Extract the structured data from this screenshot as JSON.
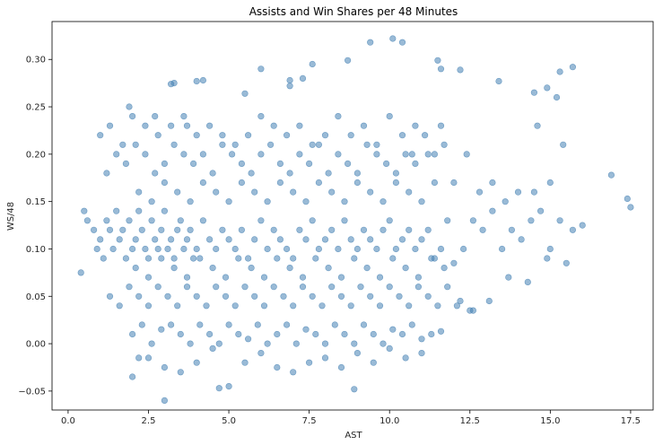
{
  "chart_data": {
    "type": "scatter",
    "title": "Assists and Win Shares per 48 Minutes",
    "xlabel": "AST",
    "ylabel": "WS/48",
    "xlim": [
      -0.5,
      18.2
    ],
    "ylim": [
      -0.07,
      0.34
    ],
    "xticks": [
      0.0,
      2.5,
      5.0,
      7.5,
      10.0,
      12.5,
      15.0,
      17.5
    ],
    "xtick_labels": [
      "0.0",
      "2.5",
      "5.0",
      "7.5",
      "10.0",
      "12.5",
      "15.0",
      "17.5"
    ],
    "yticks": [
      -0.05,
      0.0,
      0.05,
      0.1,
      0.15,
      0.2,
      0.25,
      0.3
    ],
    "ytick_labels": [
      "−0.05",
      "0.00",
      "0.05",
      "0.10",
      "0.15",
      "0.20",
      "0.25",
      "0.30"
    ],
    "grid": false,
    "legend": "none",
    "marker_color": "#4682b4",
    "marker_alpha": 0.55,
    "series": [
      {
        "x": [
          0.4,
          0.5,
          0.6,
          0.8,
          0.9,
          1.0,
          1.1,
          1.2,
          1.3,
          1.4,
          1.5,
          1.6,
          1.7,
          1.8,
          1.9,
          2.0,
          2.1,
          2.2,
          2.3,
          2.4,
          2.5,
          2.6,
          2.7,
          2.8,
          2.9,
          3.0,
          3.1,
          3.2,
          3.3,
          3.4,
          3.5,
          3.6,
          3.7,
          3.8,
          3.9,
          4.0,
          4.2,
          4.4,
          4.6,
          4.8,
          5.0,
          5.2,
          5.4,
          5.6,
          5.8,
          6.0,
          6.2,
          6.4,
          6.6,
          6.8,
          7.0,
          7.2,
          7.4,
          7.6,
          7.8,
          8.0,
          8.2,
          8.4,
          8.6,
          8.8,
          9.0,
          9.2,
          9.4,
          9.6,
          9.8,
          10.0,
          10.2,
          10.4,
          10.6,
          10.8,
          11.0,
          11.2,
          11.4,
          11.6,
          11.8,
          12.0,
          12.3,
          12.6,
          12.9,
          13.2,
          13.5,
          13.8,
          14.1,
          14.4,
          14.7,
          15.0,
          15.3,
          15.7,
          16.0,
          16.9,
          17.4,
          17.5,
          1.2,
          1.5,
          1.8,
          2.1,
          2.4,
          2.7,
          3.0,
          3.3,
          3.6,
          3.9,
          4.2,
          4.5,
          4.8,
          5.1,
          5.4,
          5.7,
          6.0,
          6.3,
          6.6,
          6.9,
          7.2,
          7.5,
          7.8,
          8.1,
          8.4,
          8.7,
          9.0,
          9.3,
          9.6,
          9.9,
          10.2,
          10.5,
          10.8,
          11.1,
          11.4,
          11.7,
          12.0,
          12.4,
          12.8,
          13.2,
          13.6,
          14.0,
          14.5,
          15.0,
          15.4,
          1.3,
          1.6,
          1.9,
          2.2,
          2.5,
          2.8,
          3.1,
          3.4,
          3.7,
          4.0,
          4.3,
          4.6,
          4.9,
          5.2,
          5.5,
          5.8,
          6.1,
          6.4,
          6.7,
          7.0,
          7.3,
          7.6,
          7.9,
          8.2,
          8.5,
          8.8,
          9.1,
          9.4,
          9.7,
          10.0,
          10.3,
          10.6,
          10.9,
          11.2,
          11.5,
          11.8,
          12.1,
          12.6,
          13.1,
          13.7,
          14.3,
          14.9,
          15.5,
          2.0,
          2.3,
          2.6,
          2.9,
          3.2,
          3.5,
          3.8,
          4.1,
          4.4,
          4.7,
          5.0,
          5.3,
          5.6,
          5.9,
          6.2,
          6.5,
          6.8,
          7.1,
          7.4,
          7.7,
          8.0,
          8.3,
          8.6,
          8.9,
          9.2,
          9.5,
          9.8,
          10.1,
          10.4,
          10.7,
          11.0,
          11.3,
          11.6,
          12.2,
          12.5,
          2.2,
          2.6,
          3.0,
          3.4,
          3.8,
          4.2,
          4.6,
          5.0,
          5.4,
          5.8,
          6.2,
          6.6,
          7.0,
          7.4,
          7.8,
          8.2,
          8.6,
          9.0,
          9.4,
          9.8,
          10.2,
          10.6,
          11.0,
          11.4,
          2.1,
          2.5,
          2.9,
          3.3,
          3.7,
          4.1,
          4.5,
          4.9,
          5.3,
          5.7,
          6.1,
          6.5,
          6.9,
          7.3,
          7.7,
          8.1,
          8.5,
          8.9,
          9.3,
          9.7,
          10.1,
          10.5,
          10.9,
          11.3,
          11.7,
          1.0,
          1.3,
          1.7,
          2.0,
          2.4,
          2.8,
          3.2,
          3.6,
          4.0,
          4.4,
          4.8,
          5.2,
          5.6,
          6.0,
          6.4,
          6.8,
          7.2,
          7.6,
          8.0,
          8.4,
          8.8,
          9.2,
          9.6,
          10.0,
          10.4,
          10.8,
          11.2,
          11.6,
          2.0,
          2.5,
          3.0,
          3.5,
          4.0,
          4.5,
          5.0,
          5.5,
          6.0,
          6.5,
          7.0,
          7.5,
          8.0,
          8.5,
          9.0,
          9.5,
          10.0,
          10.5,
          11.0,
          1.9,
          2.7,
          3.3,
          3.7,
          4.2,
          8.9,
          2.2,
          3.0,
          4.7,
          6.0,
          7.3
        ],
        "y": [
          0.075,
          0.14,
          0.13,
          0.12,
          0.1,
          0.11,
          0.09,
          0.13,
          0.12,
          0.1,
          0.14,
          0.11,
          0.12,
          0.09,
          0.13,
          0.1,
          0.11,
          0.14,
          0.12,
          0.1,
          0.09,
          0.13,
          0.11,
          0.1,
          0.12,
          0.14,
          0.1,
          0.11,
          0.09,
          0.12,
          0.13,
          0.1,
          0.11,
          0.12,
          0.09,
          0.1,
          0.13,
          0.11,
          0.1,
          0.12,
          0.11,
          0.1,
          0.12,
          0.09,
          0.11,
          0.13,
          0.1,
          0.12,
          0.11,
          0.1,
          0.09,
          0.12,
          0.11,
          0.13,
          0.1,
          0.11,
          0.12,
          0.1,
          0.13,
          0.11,
          0.1,
          0.12,
          0.11,
          0.1,
          0.12,
          0.13,
          0.1,
          0.11,
          0.12,
          0.1,
          0.11,
          0.12,
          0.09,
          0.1,
          0.13,
          0.085,
          0.1,
          0.13,
          0.12,
          0.14,
          0.1,
          0.12,
          0.11,
          0.13,
          0.14,
          0.1,
          0.13,
          0.12,
          0.125,
          0.178,
          0.153,
          0.144,
          0.18,
          0.2,
          0.19,
          0.21,
          0.2,
          0.18,
          0.19,
          0.21,
          0.2,
          0.19,
          0.2,
          0.18,
          0.21,
          0.2,
          0.19,
          0.18,
          0.2,
          0.21,
          0.19,
          0.18,
          0.2,
          0.19,
          0.21,
          0.18,
          0.2,
          0.19,
          0.18,
          0.21,
          0.2,
          0.19,
          0.18,
          0.2,
          0.19,
          0.22,
          0.2,
          0.21,
          0.17,
          0.2,
          0.16,
          0.17,
          0.15,
          0.16,
          0.16,
          0.17,
          0.21,
          0.05,
          0.04,
          0.06,
          0.05,
          0.04,
          0.06,
          0.05,
          0.04,
          0.06,
          0.05,
          0.04,
          0.06,
          0.05,
          0.04,
          0.06,
          0.05,
          0.04,
          0.06,
          0.05,
          0.04,
          0.06,
          0.05,
          0.04,
          0.06,
          0.05,
          0.04,
          0.06,
          0.05,
          0.04,
          0.06,
          0.05,
          0.04,
          0.06,
          0.05,
          0.04,
          0.06,
          0.04,
          0.035,
          0.045,
          0.07,
          0.065,
          0.09,
          0.085,
          0.01,
          0.02,
          0.0,
          0.015,
          0.02,
          0.01,
          0.0,
          0.02,
          0.01,
          0.0,
          0.02,
          0.01,
          0.005,
          0.02,
          0.0,
          0.01,
          0.02,
          0.0,
          0.015,
          0.01,
          0.0,
          0.02,
          0.01,
          0.0,
          0.02,
          0.01,
          0.0,
          0.015,
          0.01,
          0.02,
          0.005,
          0.01,
          0.013,
          0.045,
          0.035,
          0.16,
          0.15,
          0.17,
          0.16,
          0.15,
          0.17,
          0.16,
          0.15,
          0.17,
          0.16,
          0.15,
          0.17,
          0.16,
          0.15,
          0.17,
          0.16,
          0.15,
          0.17,
          0.16,
          0.15,
          0.17,
          0.16,
          0.15,
          0.17,
          0.08,
          0.07,
          0.09,
          0.08,
          0.07,
          0.09,
          0.08,
          0.07,
          0.09,
          0.08,
          0.07,
          0.09,
          0.08,
          0.07,
          0.09,
          0.08,
          0.07,
          0.09,
          0.08,
          0.07,
          0.09,
          0.08,
          0.07,
          0.09,
          0.08,
          0.22,
          0.23,
          0.21,
          0.24,
          0.23,
          0.22,
          0.23,
          0.24,
          0.22,
          0.23,
          0.22,
          0.21,
          0.22,
          0.24,
          0.23,
          0.22,
          0.23,
          0.21,
          0.22,
          0.24,
          0.22,
          0.23,
          0.21,
          0.24,
          0.22,
          0.23,
          0.2,
          0.23,
          -0.035,
          -0.015,
          -0.025,
          -0.03,
          -0.02,
          -0.005,
          -0.045,
          -0.02,
          -0.01,
          -0.025,
          -0.03,
          -0.02,
          -0.015,
          -0.025,
          -0.01,
          -0.02,
          -0.005,
          -0.015,
          -0.01,
          0.25,
          0.24,
          0.275,
          0.23,
          0.278,
          -0.048,
          -0.015,
          -0.06,
          -0.047,
          0.29,
          0.28
        ]
      }
    ],
    "outliers": {
      "x": [
        9.4,
        10.1,
        10.4,
        11.5,
        11.6,
        12.2,
        13.4,
        14.5,
        14.6,
        14.9,
        15.2,
        15.3,
        15.7,
        8.7,
        7.6,
        6.9,
        6.9,
        5.5,
        3.2,
        4.0,
        10.7
      ],
      "y": [
        0.318,
        0.322,
        0.318,
        0.299,
        0.29,
        0.289,
        0.277,
        0.265,
        0.23,
        0.27,
        0.26,
        0.287,
        0.292,
        0.299,
        0.295,
        0.278,
        0.272,
        0.264,
        0.274,
        0.277,
        0.2
      ]
    }
  }
}
